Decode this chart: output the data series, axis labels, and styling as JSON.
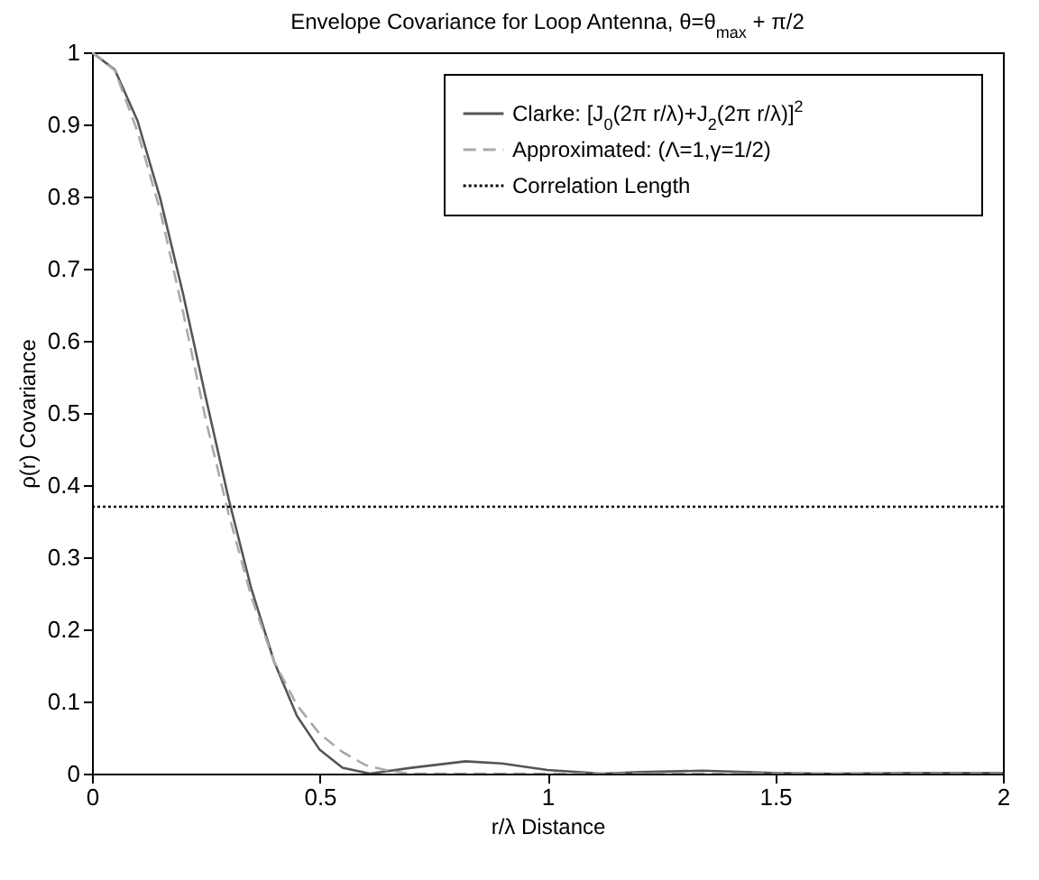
{
  "chart_data": {
    "type": "line",
    "title": "Envelope Covariance for Loop Antenna, θ=θ$_{max}$ + π/2",
    "xlabel": "r/λ  Distance",
    "ylabel": "ρ(r)  Covariance",
    "xlim": [
      0,
      2
    ],
    "xticks": [
      0,
      0.5,
      1,
      1.5,
      2
    ],
    "ylim": [
      0,
      1
    ],
    "yticks": [
      0,
      0.1,
      0.2,
      0.3,
      0.4,
      0.5,
      0.6,
      0.7,
      0.8,
      0.9,
      1
    ],
    "grid": false,
    "legend": "top right",
    "series": [
      {
        "name": "Clarke: [J$_{0}$(2π r/λ)+J$_{2}$(2π r/λ)]$^{2}$",
        "color": "#555555",
        "line_style": "solid",
        "x": [
          0,
          0.05,
          0.1,
          0.15,
          0.2,
          0.25,
          0.3,
          0.35,
          0.4,
          0.45,
          0.5,
          0.55,
          0.61,
          0.7,
          0.82,
          0.9,
          1.0,
          1.12,
          1.2,
          1.34,
          1.5,
          1.62,
          1.8,
          2.0
        ],
        "values": [
          1,
          0.976,
          0.905,
          0.797,
          0.665,
          0.521,
          0.381,
          0.256,
          0.155,
          0.08,
          0.033,
          0.008,
          0,
          0.008,
          0.017,
          0.014,
          0.005,
          0,
          0.002,
          0.004,
          0.001,
          0,
          0.001,
          0.001
        ]
      },
      {
        "name": "Approximated: (Λ=1,γ=1/2)",
        "color": "#aaaaaa",
        "line_style": "dashed",
        "x": [
          0,
          0.05,
          0.1,
          0.15,
          0.2,
          0.25,
          0.3,
          0.35,
          0.4,
          0.45,
          0.5,
          0.55,
          0.6,
          0.65,
          0.7,
          2.0
        ],
        "values": [
          1,
          0.975,
          0.89,
          0.78,
          0.64,
          0.49,
          0.36,
          0.245,
          0.155,
          0.095,
          0.055,
          0.03,
          0.012,
          0.004,
          0,
          0
        ]
      },
      {
        "name": "Correlation Length",
        "color": "#000000",
        "line_style": "dotted",
        "x": [
          0,
          2
        ],
        "values": [
          0.37,
          0.37
        ]
      }
    ]
  }
}
